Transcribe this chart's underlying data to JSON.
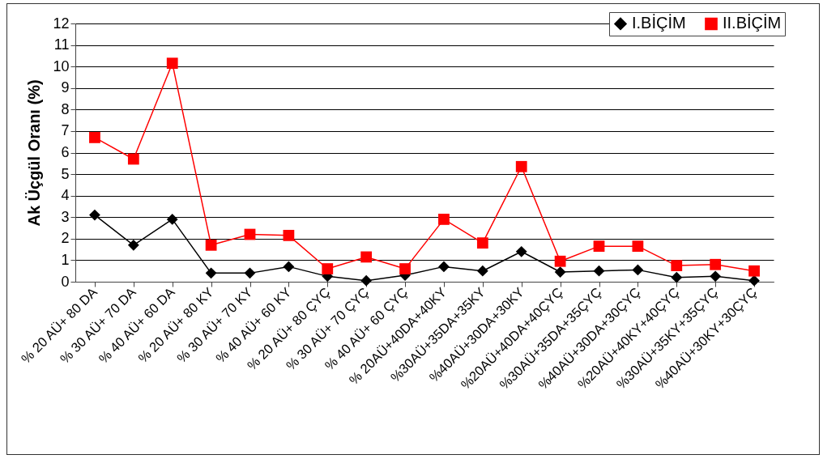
{
  "chart_data": {
    "type": "line",
    "ylabel": "Ak Üçgül Oranı (%)",
    "categories": [
      "% 20 AÜ+ 80 DA",
      "% 30 AÜ+ 70 DA",
      "% 40 AÜ+ 60 DA",
      "% 20 AÜ+ 80 KY",
      "% 30 AÜ+ 70 KY",
      "% 40 AÜ+ 60 KY",
      "% 20 AÜ+ 80 ÇYÇ",
      "% 30 AÜ+ 70 ÇYÇ",
      "% 40 AÜ+ 60 ÇYÇ",
      "% 20AÜ+40DA+40KY",
      "%30AÜ+35DA+35KY",
      "%40AÜ+30DA+30KY",
      "%20AÜ+40DA+40ÇYÇ",
      "%30AÜ+35DA+35ÇYÇ",
      "%40AÜ+30DA+30ÇYÇ",
      "%20AÜ+40KY+40ÇYÇ",
      "%30AÜ+35KY+35ÇYÇ",
      "%40AÜ+30KY+30ÇYÇ"
    ],
    "series": [
      {
        "name": "I.BİÇİM",
        "color": "#000000",
        "marker": "diamond",
        "values": [
          3.1,
          1.7,
          2.9,
          0.4,
          0.4,
          0.7,
          0.25,
          0.05,
          0.3,
          0.7,
          0.5,
          1.4,
          0.45,
          0.5,
          0.55,
          0.2,
          0.25,
          0.05
        ]
      },
      {
        "name": "II.BİÇİM",
        "color": "#ff0000",
        "marker": "square",
        "values": [
          6.7,
          5.7,
          10.15,
          1.7,
          2.2,
          2.15,
          0.6,
          1.15,
          0.6,
          2.9,
          1.8,
          5.35,
          0.95,
          1.65,
          1.65,
          0.75,
          0.8,
          0.5
        ]
      }
    ],
    "ylim": [
      0,
      12
    ],
    "yticks": [
      0,
      1,
      2,
      3,
      4,
      5,
      6,
      7,
      8,
      9,
      10,
      11,
      12
    ],
    "grid": "y",
    "legend": "top right"
  }
}
